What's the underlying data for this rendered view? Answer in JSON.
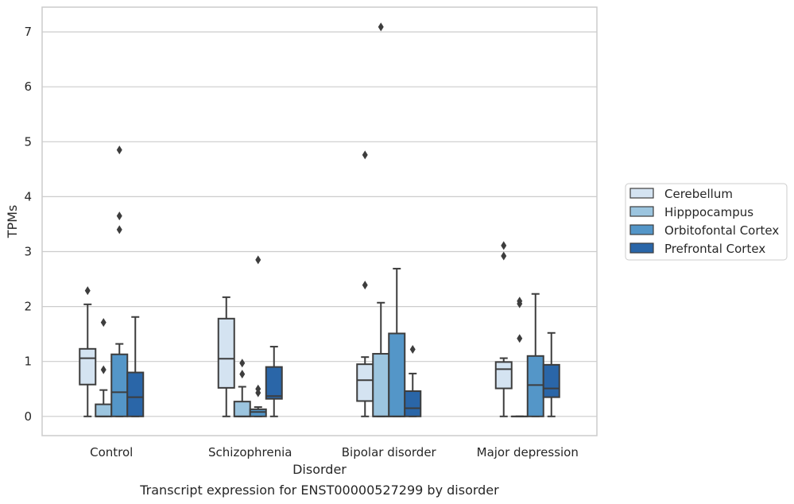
{
  "chart_data": {
    "type": "boxplot",
    "title": "Transcript expression for ENST00000527299 by disorder",
    "xlabel": "Disorder",
    "ylabel": "TPMs",
    "categories": [
      "Control",
      "Schizophrenia",
      "Bipolar disorder",
      "Major depression"
    ],
    "yticks": [
      "0",
      "1",
      "2",
      "3",
      "4",
      "5",
      "6",
      "7"
    ],
    "ylim": [
      -0.35,
      7.45
    ],
    "grid": "horizontal",
    "legend_position": "right",
    "series": [
      {
        "name": "Cerebellum",
        "color": "#d4e3f1",
        "boxes": [
          {
            "whislo": 0.0,
            "q1": 0.58,
            "med": 1.06,
            "q3": 1.23,
            "whishi": 2.04,
            "fliers": [
              2.29
            ]
          },
          {
            "whislo": 0.0,
            "q1": 0.52,
            "med": 1.05,
            "q3": 1.78,
            "whishi": 2.17,
            "fliers": []
          },
          {
            "whislo": 0.0,
            "q1": 0.28,
            "med": 0.66,
            "q3": 0.95,
            "whishi": 1.08,
            "fliers": [
              2.39,
              4.76
            ]
          },
          {
            "whislo": 0.0,
            "q1": 0.51,
            "med": 0.86,
            "q3": 0.99,
            "whishi": 1.06,
            "fliers": [
              2.92,
              3.11
            ]
          }
        ]
      },
      {
        "name": "Hipppocampus",
        "color": "#9cc5df",
        "boxes": [
          {
            "whislo": 0.0,
            "q1": 0.0,
            "med": 0.0,
            "q3": 0.22,
            "whishi": 0.48,
            "fliers": [
              0.85,
              1.71
            ]
          },
          {
            "whislo": 0.0,
            "q1": 0.0,
            "med": 0.0,
            "q3": 0.27,
            "whishi": 0.54,
            "fliers": [
              0.77,
              0.97
            ]
          },
          {
            "whislo": 0.0,
            "q1": 0.0,
            "med": 0.0,
            "q3": 1.14,
            "whishi": 2.07,
            "fliers": [
              7.09
            ]
          },
          {
            "whislo": 0.0,
            "q1": 0.0,
            "med": 0.0,
            "q3": 0.0,
            "whishi": 0.0,
            "fliers": [
              1.42,
              2.05,
              2.1
            ]
          }
        ]
      },
      {
        "name": "Orbitofontal Cortex",
        "color": "#5496c8",
        "boxes": [
          {
            "whislo": 0.0,
            "q1": 0.0,
            "med": 0.44,
            "q3": 1.13,
            "whishi": 1.32,
            "fliers": [
              3.4,
              3.65,
              4.85
            ]
          },
          {
            "whislo": 0.0,
            "q1": 0.0,
            "med": 0.08,
            "q3": 0.13,
            "whishi": 0.17,
            "fliers": [
              0.43,
              0.5,
              2.85
            ]
          },
          {
            "whislo": 0.0,
            "q1": 0.0,
            "med": 0.0,
            "q3": 1.51,
            "whishi": 2.69,
            "fliers": []
          },
          {
            "whislo": 0.0,
            "q1": 0.0,
            "med": 0.57,
            "q3": 1.1,
            "whishi": 2.23,
            "fliers": []
          }
        ]
      },
      {
        "name": "Prefrontal Cortex",
        "color": "#2a66a8",
        "boxes": [
          {
            "whislo": 0.0,
            "q1": 0.0,
            "med": 0.35,
            "q3": 0.8,
            "whishi": 1.81,
            "fliers": []
          },
          {
            "whislo": 0.0,
            "q1": 0.32,
            "med": 0.37,
            "q3": 0.9,
            "whishi": 1.27,
            "fliers": []
          },
          {
            "whislo": 0.0,
            "q1": 0.0,
            "med": 0.15,
            "q3": 0.46,
            "whishi": 0.78,
            "fliers": [
              1.22
            ]
          },
          {
            "whislo": 0.0,
            "q1": 0.35,
            "med": 0.51,
            "q3": 0.94,
            "whishi": 1.52,
            "fliers": []
          }
        ]
      }
    ]
  }
}
